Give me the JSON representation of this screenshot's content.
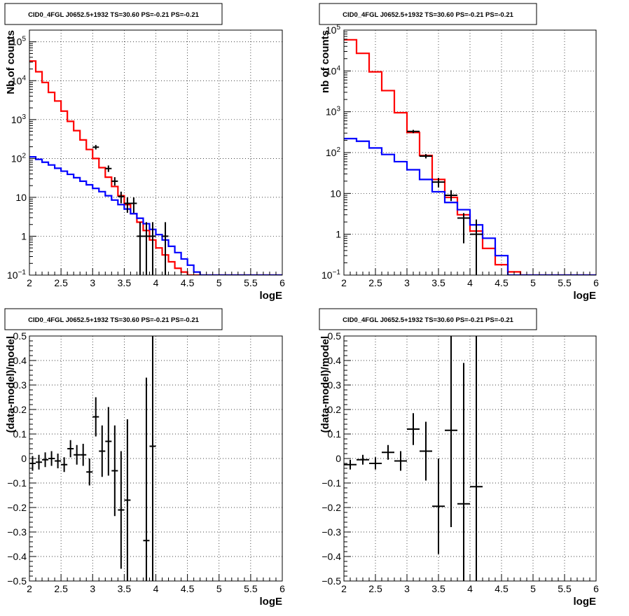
{
  "panels": [
    {
      "title": "CID0_4FGL J0652.5+1932 TS=30.60 PS=-0.21 PS=-0.21",
      "chart_data": {
        "type": "line",
        "scale_y": "log",
        "xlabel": "logE",
        "ylabel": "Nb of counts",
        "xlim": [
          2,
          6
        ],
        "ylim": [
          0.1,
          200000
        ],
        "grid": true,
        "x_ticks": [
          "2",
          "2.5",
          "3",
          "3.5",
          "4",
          "4.5",
          "5",
          "5.5",
          "6"
        ],
        "y_ticks": [
          {
            "v": 0.1,
            "base": "10",
            "exp": "−1"
          },
          {
            "v": 1,
            "text": "1"
          },
          {
            "v": 10,
            "text": "10"
          },
          {
            "v": 100,
            "base": "10",
            "exp": "2"
          },
          {
            "v": 1000,
            "base": "10",
            "exp": "3"
          },
          {
            "v": 10000,
            "base": "10",
            "exp": "4"
          },
          {
            "v": 100000,
            "base": "10",
            "exp": "5"
          }
        ],
        "bin_edges": [
          2.0,
          2.1,
          2.2,
          2.3,
          2.4,
          2.5,
          2.6,
          2.7,
          2.8,
          2.9,
          3.0,
          3.1,
          3.2,
          3.3,
          3.4,
          3.5,
          3.6,
          3.7,
          3.8,
          3.9,
          4.0,
          4.1,
          4.2,
          4.3,
          4.4,
          4.5,
          4.6,
          4.7,
          4.8,
          4.9,
          5.0,
          5.1,
          5.2,
          5.3,
          5.4,
          5.5,
          5.6,
          5.7,
          5.8,
          5.9,
          6.0
        ],
        "series": [
          {
            "color": "#ff0000",
            "values": [
              32000,
              17000,
              9000,
              5000,
              3000,
              1650,
              900,
              520,
              300,
              170,
              100,
              58,
              33,
              19,
              11,
              6.5,
              3.8,
              2.3,
              1.4,
              0.8,
              0.5,
              0.33,
              0.22,
              0.15,
              0.12,
              0.1,
              0.1,
              0.1,
              0.1,
              0.1,
              0.1,
              0.1,
              0.1,
              0.1,
              0.1,
              0.1,
              0.1,
              0.1,
              0.1,
              0.1
            ]
          },
          {
            "color": "#0000ff",
            "values": [
              110,
              95,
              80,
              68,
              56,
              47,
              39,
              32,
              26,
              21,
              17,
              14,
              11,
              8.5,
              6.5,
              5,
              3.8,
              2.9,
              2.1,
              1.5,
              1.1,
              0.8,
              0.55,
              0.38,
              0.26,
              0.18,
              0.12,
              0.1,
              0.1,
              0.1,
              0.1,
              0.1,
              0.1,
              0.1,
              0.1,
              0.1,
              0.1,
              0.1,
              0.1,
              0.1
            ]
          }
        ],
        "points": {
          "color": "#000000",
          "xerr": 0.05,
          "data": [
            {
              "x": 3.05,
              "y": 195,
              "ylo": 170,
              "yhi": 222
            },
            {
              "x": 3.25,
              "y": 55,
              "ylo": 45,
              "yhi": 66
            },
            {
              "x": 3.35,
              "y": 26,
              "ylo": 20,
              "yhi": 33
            },
            {
              "x": 3.45,
              "y": 10.5,
              "ylo": 7,
              "yhi": 14
            },
            {
              "x": 3.55,
              "y": 7,
              "ylo": 4,
              "yhi": 10
            },
            {
              "x": 3.65,
              "y": 7,
              "ylo": 4,
              "yhi": 10
            },
            {
              "x": 3.75,
              "y": 1,
              "ylo": 0.1,
              "yhi": 2.3
            },
            {
              "x": 3.85,
              "y": 1,
              "ylo": 0.1,
              "yhi": 2.3
            },
            {
              "x": 3.95,
              "y": 1,
              "ylo": 0.1,
              "yhi": 2.3
            },
            {
              "x": 4.15,
              "y": 1,
              "ylo": 0.1,
              "yhi": 2.3
            }
          ]
        }
      }
    },
    {
      "title": "CID0_4FGL J0652.5+1932 TS=30.60 PS=-0.21 PS=-0.21",
      "chart_data": {
        "type": "line",
        "scale_y": "log",
        "xlabel": "logE",
        "ylabel": "nb of counts",
        "xlim": [
          2,
          6
        ],
        "ylim": [
          0.1,
          100000
        ],
        "grid": true,
        "x_ticks": [
          "2",
          "2.5",
          "3",
          "3.5",
          "4",
          "4.5",
          "5",
          "5.5",
          "6"
        ],
        "y_ticks": [
          {
            "v": 0.1,
            "base": "10",
            "exp": "−1"
          },
          {
            "v": 1,
            "text": "1"
          },
          {
            "v": 10,
            "text": "10"
          },
          {
            "v": 100,
            "base": "10",
            "exp": "2"
          },
          {
            "v": 1000,
            "base": "10",
            "exp": "3"
          },
          {
            "v": 10000,
            "base": "10",
            "exp": "4"
          },
          {
            "v": 100000,
            "base": "10",
            "exp": "5"
          }
        ],
        "bin_edges": [
          2.0,
          2.2,
          2.4,
          2.6,
          2.8,
          3.0,
          3.2,
          3.4,
          3.6,
          3.8,
          4.0,
          4.2,
          4.4,
          4.6,
          4.8,
          5.0,
          5.2,
          5.4,
          5.6,
          5.8,
          6.0
        ],
        "series": [
          {
            "color": "#ff0000",
            "values": [
              58000,
              27000,
              9500,
              3300,
              950,
              310,
              85,
              22,
              8,
              3,
              1.2,
              0.45,
              0.18,
              0.12,
              0.1,
              0.1,
              0.1,
              0.1,
              0.1,
              0.1
            ]
          },
          {
            "color": "#0000ff",
            "values": [
              220,
              190,
              130,
              90,
              60,
              38,
              22,
              11,
              6,
              4,
              1.7,
              0.8,
              0.3,
              0.1,
              0.1,
              0.1,
              0.1,
              0.1,
              0.1,
              0.1
            ]
          }
        ],
        "points": {
          "color": "#000000",
          "xerr": 0.1,
          "data": [
            {
              "x": 3.1,
              "y": 330,
              "ylo": 300,
              "yhi": 360
            },
            {
              "x": 3.3,
              "y": 82,
              "ylo": 72,
              "yhi": 92
            },
            {
              "x": 3.5,
              "y": 19,
              "ylo": 14,
              "yhi": 24
            },
            {
              "x": 3.7,
              "y": 9,
              "ylo": 6.5,
              "yhi": 12
            },
            {
              "x": 3.9,
              "y": 2.5,
              "ylo": 0.6,
              "yhi": 3.3
            },
            {
              "x": 4.1,
              "y": 1,
              "ylo": 0.1,
              "yhi": 2.3
            }
          ]
        }
      }
    },
    {
      "title": "CID0_4FGL J0652.5+1932 TS=30.60 PS=-0.21 PS=-0.21",
      "chart_data": {
        "type": "scatter",
        "scale_y": "linear",
        "xlabel": "logE",
        "ylabel": "(data-model)/model",
        "xlim": [
          2,
          6
        ],
        "ylim": [
          -0.5,
          0.5
        ],
        "grid": true,
        "x_ticks": [
          "2",
          "2.5",
          "3",
          "3.5",
          "4",
          "4.5",
          "5",
          "5.5",
          "6"
        ],
        "y_ticks": [
          {
            "v": -0.5,
            "text": "−0.5"
          },
          {
            "v": -0.4,
            "text": "−0.4"
          },
          {
            "v": -0.3,
            "text": "−0.3"
          },
          {
            "v": -0.2,
            "text": "−0.2"
          },
          {
            "v": -0.1,
            "text": "−0.1"
          },
          {
            "v": 0,
            "text": "0"
          },
          {
            "v": 0.1,
            "text": "0.1"
          },
          {
            "v": 0.2,
            "text": "0.2"
          },
          {
            "v": 0.3,
            "text": "0.3"
          },
          {
            "v": 0.4,
            "text": "0.4"
          },
          {
            "v": 0.5,
            "text": "0.5"
          }
        ],
        "points": {
          "color": "#000000",
          "xerr": 0.05,
          "data": [
            {
              "x": 2.05,
              "y": -0.02,
              "err": 0.03
            },
            {
              "x": 2.15,
              "y": -0.015,
              "err": 0.03
            },
            {
              "x": 2.25,
              "y": -0.005,
              "err": 0.03
            },
            {
              "x": 2.35,
              "y": 0.0,
              "err": 0.03
            },
            {
              "x": 2.45,
              "y": -0.01,
              "err": 0.03
            },
            {
              "x": 2.55,
              "y": -0.025,
              "err": 0.03
            },
            {
              "x": 2.65,
              "y": 0.04,
              "err": 0.035
            },
            {
              "x": 2.75,
              "y": 0.015,
              "err": 0.04
            },
            {
              "x": 2.85,
              "y": 0.015,
              "err": 0.045
            },
            {
              "x": 2.95,
              "y": -0.055,
              "err": 0.055
            },
            {
              "x": 3.05,
              "y": 0.17,
              "err": 0.08
            },
            {
              "x": 3.15,
              "y": 0.03,
              "err": 0.105
            },
            {
              "x": 3.25,
              "y": 0.07,
              "err": 0.14
            },
            {
              "x": 3.35,
              "y": -0.05,
              "err": 0.185
            },
            {
              "x": 3.45,
              "y": -0.21,
              "err": 0.24
            },
            {
              "x": 3.55,
              "y": -0.17,
              "err": 0.33
            },
            {
              "x": 3.85,
              "y": -0.335,
              "err": 0.665
            },
            {
              "x": 3.95,
              "y": 0.05,
              "err": 0.95
            }
          ]
        }
      }
    },
    {
      "title": "CID0_4FGL J0652.5+1932 TS=30.60 PS=-0.21 PS=-0.21",
      "chart_data": {
        "type": "scatter",
        "scale_y": "linear",
        "xlabel": "logE",
        "ylabel": "(data-model)/model",
        "xlim": [
          2,
          6
        ],
        "ylim": [
          -0.5,
          0.5
        ],
        "grid": true,
        "x_ticks": [
          "2",
          "2.5",
          "3",
          "3.5",
          "4",
          "4.5",
          "5",
          "5.5",
          "6"
        ],
        "y_ticks": [
          {
            "v": -0.5,
            "text": "−0.5"
          },
          {
            "v": -0.4,
            "text": "−0.4"
          },
          {
            "v": -0.3,
            "text": "−0.3"
          },
          {
            "v": -0.2,
            "text": "−0.2"
          },
          {
            "v": -0.1,
            "text": "−0.1"
          },
          {
            "v": 0,
            "text": "0"
          },
          {
            "v": 0.1,
            "text": "0.1"
          },
          {
            "v": 0.2,
            "text": "0.2"
          },
          {
            "v": 0.3,
            "text": "0.3"
          },
          {
            "v": 0.4,
            "text": "0.4"
          },
          {
            "v": 0.5,
            "text": "0.5"
          }
        ],
        "points": {
          "color": "#000000",
          "xerr": 0.1,
          "data": [
            {
              "x": 2.1,
              "y": -0.025,
              "err": 0.02
            },
            {
              "x": 2.3,
              "y": -0.005,
              "err": 0.02
            },
            {
              "x": 2.5,
              "y": -0.02,
              "err": 0.025
            },
            {
              "x": 2.7,
              "y": 0.025,
              "err": 0.03
            },
            {
              "x": 2.9,
              "y": -0.01,
              "err": 0.04
            },
            {
              "x": 3.1,
              "y": 0.12,
              "err": 0.065
            },
            {
              "x": 3.3,
              "y": 0.03,
              "err": 0.12
            },
            {
              "x": 3.5,
              "y": -0.195,
              "err": 0.195
            },
            {
              "x": 3.7,
              "y": 0.115,
              "err": 0.395
            },
            {
              "x": 3.9,
              "y": -0.185,
              "err": 0.575
            },
            {
              "x": 4.1,
              "y": -0.115,
              "err": 0.86
            }
          ]
        }
      }
    }
  ]
}
